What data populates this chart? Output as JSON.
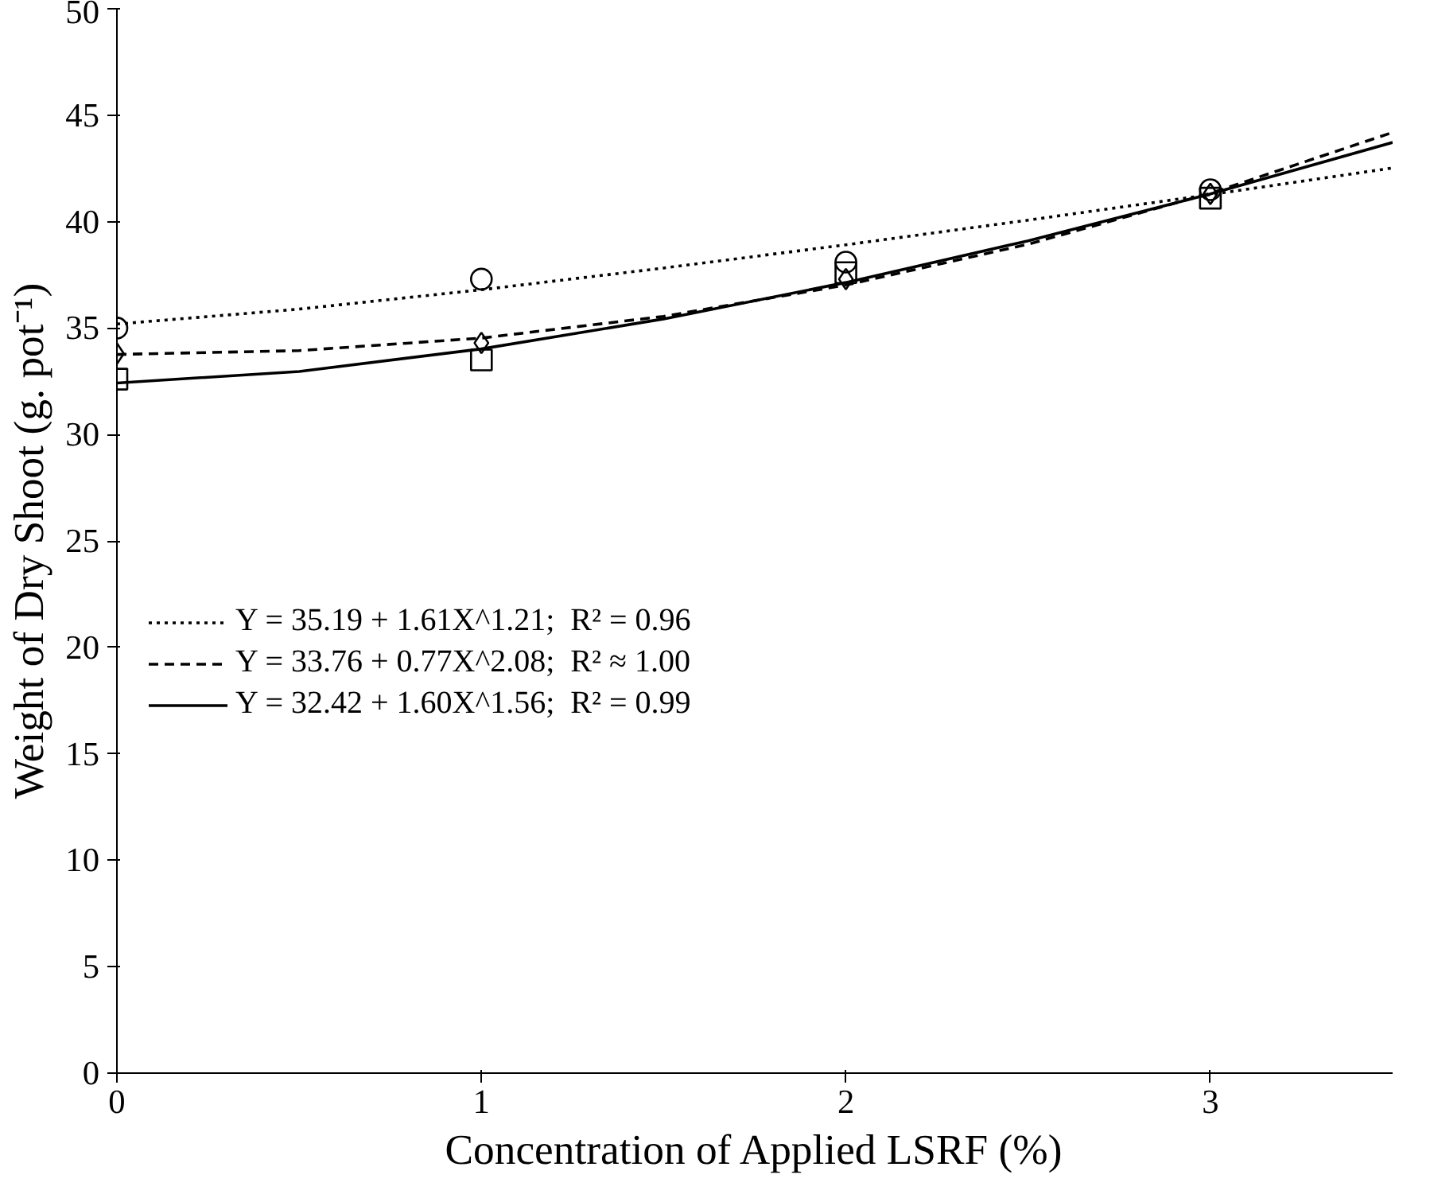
{
  "chart_data": {
    "type": "scatter",
    "xlabel": "Concentration of Applied LSRF (%)",
    "ylabel": "Weight of Dry Shoot (g. pot⁻¹)",
    "xlim": [
      0,
      3.5
    ],
    "xticks": [
      0,
      1,
      2,
      3
    ],
    "ylim": [
      0,
      50
    ],
    "yticks": [
      0,
      5,
      10,
      15,
      20,
      25,
      30,
      35,
      40,
      45,
      50
    ],
    "grid": false,
    "legend": "left",
    "series": [
      {
        "marker": "circle",
        "color": "#000000",
        "x": [
          0,
          1,
          2,
          3
        ],
        "values": [
          35.0,
          37.3,
          38.1,
          41.5
        ]
      },
      {
        "marker": "diamond",
        "color": "#000000",
        "x": [
          0,
          1,
          2,
          3
        ],
        "values": [
          33.8,
          34.3,
          37.3,
          41.3
        ]
      },
      {
        "marker": "square",
        "color": "#000000",
        "x": [
          0,
          1,
          2,
          3
        ],
        "values": [
          32.6,
          33.5,
          37.6,
          41.1
        ]
      },
      {
        "type": "line",
        "line_style": "dotted",
        "name": "Y = 35.19 + 1.61X^1.21;  R² = 0.96",
        "color": "#000000",
        "x": [
          0,
          0.5,
          1,
          1.5,
          2,
          2.5,
          3,
          3.5
        ],
        "values": [
          35.19,
          35.89,
          36.8,
          37.82,
          38.91,
          40.07,
          41.27,
          42.52
        ]
      },
      {
        "type": "line",
        "line_style": "dashed",
        "name": "Y = 33.76 + 0.77X^2.08;  R² ≈ 1.00",
        "color": "#000000",
        "x": [
          0,
          0.5,
          1,
          1.5,
          2,
          2.5,
          3,
          3.5
        ],
        "values": [
          33.76,
          33.94,
          34.53,
          35.55,
          37.02,
          38.94,
          41.33,
          44.19
        ]
      },
      {
        "type": "line",
        "line_style": "solid",
        "name": "Y = 32.42 + 1.60X^1.56;  R² = 0.99",
        "color": "#000000",
        "x": [
          0,
          0.5,
          1,
          1.5,
          2,
          2.5,
          3,
          3.5
        ],
        "values": [
          32.42,
          32.96,
          34.02,
          35.43,
          37.14,
          39.1,
          41.3,
          43.72
        ]
      }
    ]
  }
}
